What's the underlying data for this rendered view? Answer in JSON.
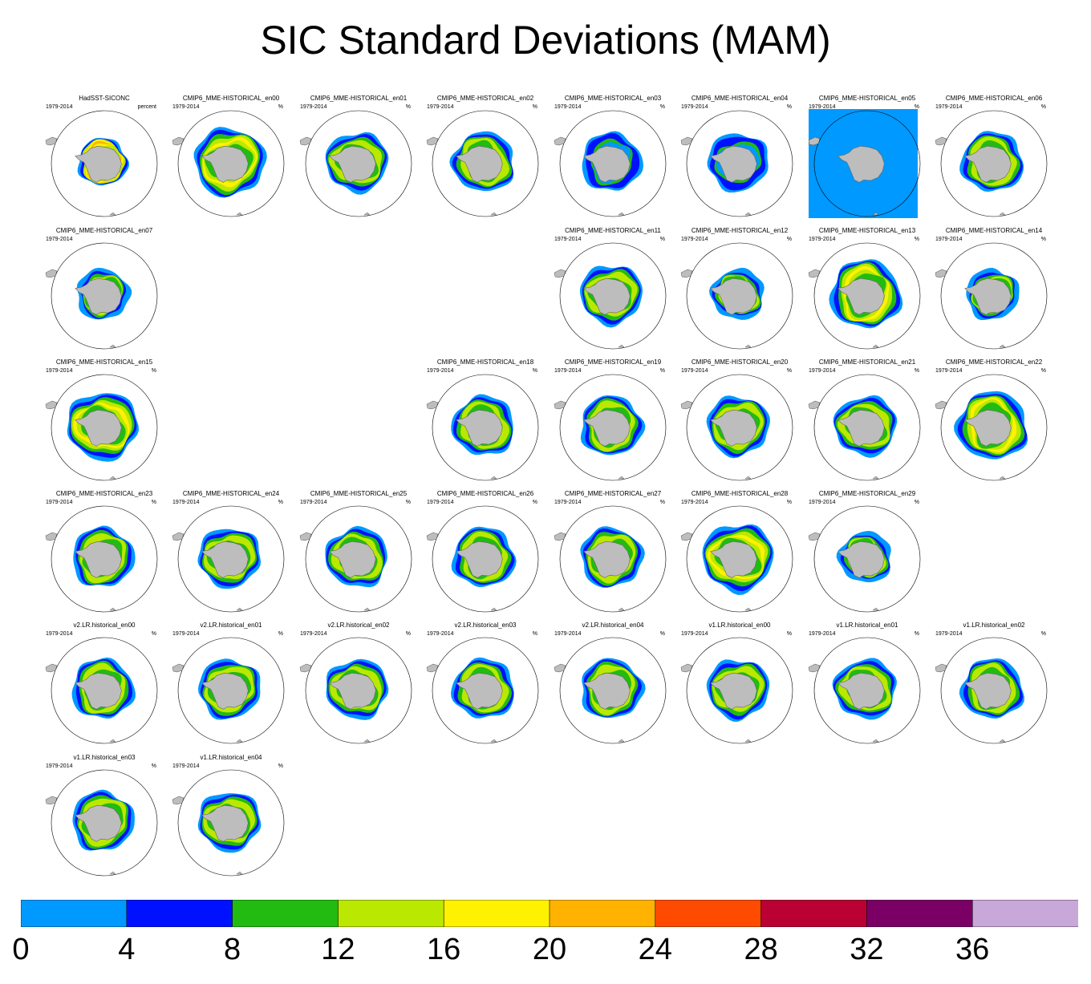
{
  "title": "SIC Standard Deviations (MAM)",
  "colorbar": {
    "colors": [
      "#0099ff",
      "#0011ff",
      "#22bb11",
      "#bbe800",
      "#fff200",
      "#ffb300",
      "#ff4b00",
      "#bb0033",
      "#7a0066",
      "#c8a8d8"
    ],
    "labels": [
      "0",
      "4",
      "8",
      "12",
      "16",
      "20",
      "24",
      "28",
      "32",
      "36"
    ]
  },
  "panels": [
    {
      "title": "HadSST-SICONC",
      "period": "1979-2014",
      "units": "percent",
      "style": "obs"
    },
    {
      "title": "CMIP6_MME-HISTORICAL_en00",
      "period": "1979-2014",
      "units": "%",
      "style": "wide"
    },
    {
      "title": "CMIP6_MME-HISTORICAL_en01",
      "period": "1979-2014",
      "units": "%",
      "style": "med"
    },
    {
      "title": "CMIP6_MME-HISTORICAL_en02",
      "period": "1979-2014",
      "units": "%",
      "style": "med"
    },
    {
      "title": "CMIP6_MME-HISTORICAL_en03",
      "period": "1979-2014",
      "units": "%",
      "style": "blue"
    },
    {
      "title": "CMIP6_MME-HISTORICAL_en04",
      "period": "1979-2014",
      "units": "%",
      "style": "blue"
    },
    {
      "title": "CMIP6_MME-HISTORICAL_en05",
      "period": "1979-2014",
      "units": "%",
      "style": "full"
    },
    {
      "title": "CMIP6_MME-HISTORICAL_en06",
      "period": "1979-2014",
      "units": "%",
      "style": "med"
    },
    {
      "title": "CMIP6_MME-HISTORICAL_en07",
      "period": "1979-2014",
      "units": "",
      "style": "small"
    },
    {
      "title": "CMIP6_MME-HISTORICAL_en11",
      "period": "1979-2014",
      "units": "%",
      "style": "med"
    },
    {
      "title": "CMIP6_MME-HISTORICAL_en12",
      "period": "1979-2014",
      "units": "%",
      "style": "small"
    },
    {
      "title": "CMIP6_MME-HISTORICAL_en13",
      "period": "1979-2014",
      "units": "%",
      "style": "wide"
    },
    {
      "title": "CMIP6_MME-HISTORICAL_en14",
      "period": "1979-2014",
      "units": "%",
      "style": "small"
    },
    {
      "title": "CMIP6_MME-HISTORICAL_en15",
      "period": "1979-2014",
      "units": "%",
      "style": "wide"
    },
    {
      "title": "CMIP6_MME-HISTORICAL_en18",
      "period": "1979-2014",
      "units": "%",
      "style": "med"
    },
    {
      "title": "CMIP6_MME-HISTORICAL_en19",
      "period": "1979-2014",
      "units": "%",
      "style": "med"
    },
    {
      "title": "CMIP6_MME-HISTORICAL_en20",
      "period": "1979-2014",
      "units": "%",
      "style": "med"
    },
    {
      "title": "CMIP6_MME-HISTORICAL_en21",
      "period": "1979-2014",
      "units": "%",
      "style": "med"
    },
    {
      "title": "CMIP6_MME-HISTORICAL_en22",
      "period": "1979-2014",
      "units": "%",
      "style": "wide"
    },
    {
      "title": "CMIP6_MME-HISTORICAL_en23",
      "period": "1979-2014",
      "units": "%",
      "style": "med"
    },
    {
      "title": "CMIP6_MME-HISTORICAL_en24",
      "period": "1979-2014",
      "units": "%",
      "style": "med"
    },
    {
      "title": "CMIP6_MME-HISTORICAL_en25",
      "period": "1979-2014",
      "units": "%",
      "style": "med"
    },
    {
      "title": "CMIP6_MME-HISTORICAL_en26",
      "period": "1979-2014",
      "units": "%",
      "style": "med"
    },
    {
      "title": "CMIP6_MME-HISTORICAL_en27",
      "period": "1979-2014",
      "units": "%",
      "style": "med"
    },
    {
      "title": "CMIP6_MME-HISTORICAL_en28",
      "period": "1979-2014",
      "units": "%",
      "style": "wide"
    },
    {
      "title": "CMIP6_MME-HISTORICAL_en29",
      "period": "1979-2014",
      "units": "%",
      "style": "small"
    },
    {
      "title": "v2.LR.historical_en00",
      "period": "1979-2014",
      "units": "%",
      "style": "med"
    },
    {
      "title": "v2.LR.historical_en01",
      "period": "1979-2014",
      "units": "%",
      "style": "med"
    },
    {
      "title": "v2.LR.historical_en02",
      "period": "1979-2014",
      "units": "%",
      "style": "med"
    },
    {
      "title": "v2.LR.historical_en03",
      "period": "1979-2014",
      "units": "%",
      "style": "med"
    },
    {
      "title": "v2.LR.historical_en04",
      "period": "1979-2014",
      "units": "%",
      "style": "med"
    },
    {
      "title": "v1.LR.historical_en00",
      "period": "1979-2014",
      "units": "%",
      "style": "med"
    },
    {
      "title": "v1.LR.historical_en01",
      "period": "1979-2014",
      "units": "%",
      "style": "med"
    },
    {
      "title": "v1.LR.historical_en02",
      "period": "1979-2014",
      "units": "%",
      "style": "med"
    },
    {
      "title": "v1.LR.historical_en03",
      "period": "1979-2014",
      "units": "%",
      "style": "med"
    },
    {
      "title": "v1.LR.historical_en04",
      "period": "1979-2014",
      "units": "%",
      "style": "med"
    }
  ]
}
